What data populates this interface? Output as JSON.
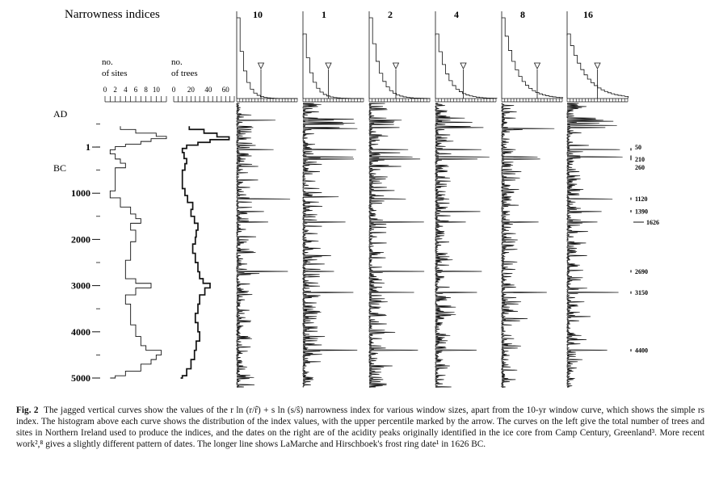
{
  "chart_data": {
    "type": "line",
    "title": "Narrowness indices",
    "y_axis": {
      "era_labels": [
        "AD",
        "BC"
      ],
      "ticks": [
        "1",
        "1000",
        "2000",
        "3000",
        "4000",
        "5000"
      ],
      "range_bc": [
        -500,
        5000
      ]
    },
    "sample_depth": [
      {
        "name": "no. of sites",
        "label_line1": "no.",
        "label_line2": "of sites",
        "ticks": [
          "0",
          "2",
          "4",
          "6",
          "8",
          "10"
        ],
        "xlim": [
          0,
          12
        ],
        "points": [
          [
            -450,
            3
          ],
          [
            -380,
            6
          ],
          [
            -300,
            10
          ],
          [
            -230,
            12
          ],
          [
            -180,
            9
          ],
          [
            -120,
            7
          ],
          [
            -60,
            4
          ],
          [
            -10,
            2
          ],
          [
            60,
            1
          ],
          [
            150,
            2
          ],
          [
            260,
            3
          ],
          [
            350,
            4
          ],
          [
            450,
            2
          ],
          [
            600,
            2
          ],
          [
            800,
            2
          ],
          [
            950,
            1
          ],
          [
            1100,
            3
          ],
          [
            1300,
            5
          ],
          [
            1450,
            6
          ],
          [
            1550,
            7
          ],
          [
            1650,
            5
          ],
          [
            1800,
            6
          ],
          [
            1950,
            6
          ],
          [
            2050,
            5
          ],
          [
            2250,
            5
          ],
          [
            2450,
            4
          ],
          [
            2650,
            4
          ],
          [
            2850,
            6
          ],
          [
            2950,
            9
          ],
          [
            3050,
            6
          ],
          [
            3200,
            4
          ],
          [
            3400,
            5
          ],
          [
            3650,
            5
          ],
          [
            3850,
            6
          ],
          [
            4100,
            7
          ],
          [
            4300,
            8
          ],
          [
            4400,
            11
          ],
          [
            4500,
            10
          ],
          [
            4600,
            9
          ],
          [
            4700,
            7
          ],
          [
            4850,
            4
          ],
          [
            4950,
            2
          ],
          [
            5000,
            1
          ]
        ]
      },
      {
        "name": "no. of trees",
        "label_line1": "no.",
        "label_line2": "of trees",
        "ticks": [
          "0",
          "20",
          "40",
          "60"
        ],
        "xlim": [
          0,
          70
        ],
        "points": [
          [
            -450,
            18
          ],
          [
            -380,
            35
          ],
          [
            -300,
            50
          ],
          [
            -220,
            64
          ],
          [
            -160,
            42
          ],
          [
            -100,
            28
          ],
          [
            -40,
            15
          ],
          [
            30,
            10
          ],
          [
            120,
            12
          ],
          [
            250,
            15
          ],
          [
            360,
            13
          ],
          [
            500,
            10
          ],
          [
            700,
            10
          ],
          [
            900,
            13
          ],
          [
            1050,
            16
          ],
          [
            1200,
            22
          ],
          [
            1350,
            20
          ],
          [
            1500,
            24
          ],
          [
            1650,
            28
          ],
          [
            1800,
            26
          ],
          [
            1950,
            25
          ],
          [
            2100,
            22
          ],
          [
            2300,
            25
          ],
          [
            2500,
            28
          ],
          [
            2700,
            30
          ],
          [
            2850,
            34
          ],
          [
            2950,
            42
          ],
          [
            3050,
            36
          ],
          [
            3200,
            30
          ],
          [
            3400,
            28
          ],
          [
            3600,
            25
          ],
          [
            3800,
            28
          ],
          [
            4000,
            30
          ],
          [
            4200,
            26
          ],
          [
            4400,
            24
          ],
          [
            4600,
            20
          ],
          [
            4800,
            15
          ],
          [
            4950,
            10
          ],
          [
            5000,
            8
          ]
        ]
      }
    ],
    "window_sizes": [
      "10",
      "1",
      "2",
      "4",
      "8",
      "16"
    ],
    "acidity_peaks": [
      "50",
      "210",
      "260",
      "1120",
      "1390",
      "1626",
      "2690",
      "3150",
      "4400"
    ],
    "frost_ring_date": "1626"
  },
  "caption": {
    "label": "Fig. 2",
    "text": "The jagged vertical curves show the values of the r ln (r/r̂) + s ln (s/ŝ) narrowness index for various window sizes, apart from the 10-yr window curve, which shows the simple rs index. The histogram above each curve shows the distribution of the index values, with the upper percentile marked by the arrow. The curves on the left give the total number of trees and sites in Northern Ireland used to produce the indices, and the dates on the right are of the acidity peaks originally identified in the ice core from Camp Century, Greenland³. More recent work²,⁸ gives a slightly different pattern of dates. The longer line shows LaMarche and Hirschboek's frost ring date¹ in 1626 BC."
  }
}
